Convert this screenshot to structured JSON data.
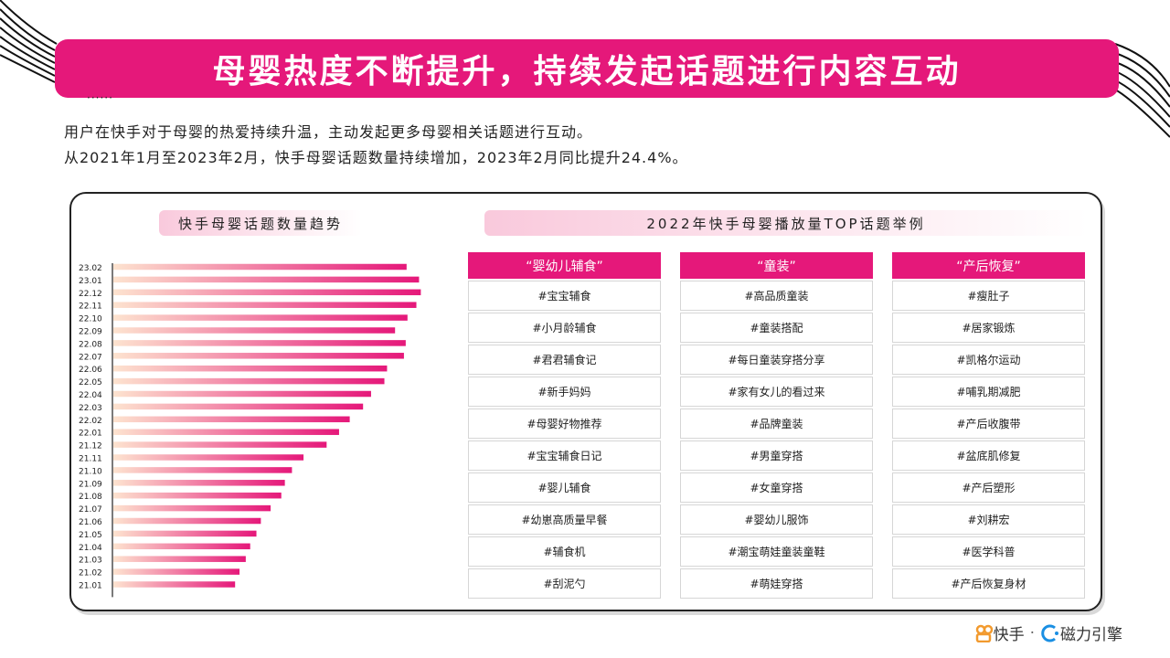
{
  "title": "母婴热度不断提升，持续发起话题进行内容互动",
  "dots": "······",
  "intro": [
    "用户在快手对于母婴的热爱持续升温，主动发起更多母婴相关话题进行互动。",
    "从2021年1月至2023年2月，快手母婴话题数量持续增加，2023年2月同比提升24.4%。"
  ],
  "left_panel_title": "快手母婴话题数量趋势",
  "right_panel_title": "2022年快手母婴播放量TOP话题举例",
  "chart_data": {
    "type": "bar",
    "orientation": "horizontal",
    "title": "快手母婴话题数量趋势",
    "categories": [
      "23.02",
      "23.01",
      "22.12",
      "22.11",
      "22.10",
      "22.09",
      "22.08",
      "22.07",
      "22.06",
      "22.05",
      "22.04",
      "22.03",
      "22.02",
      "22.01",
      "21.12",
      "21.11",
      "21.10",
      "21.09",
      "21.08",
      "21.07",
      "21.06",
      "21.05",
      "21.04",
      "21.03",
      "21.02",
      "21.01"
    ],
    "values": [
      330,
      344,
      346,
      341,
      331,
      317,
      329,
      327,
      308,
      305,
      290,
      281,
      266,
      254,
      240,
      214,
      201,
      193,
      189,
      177,
      166,
      161,
      154,
      149,
      142,
      137
    ],
    "xlim": [
      0,
      360
    ],
    "gradient": [
      "#fde3cf",
      "#e5187a"
    ]
  },
  "topics": [
    {
      "header": "“婴幼儿辅食”",
      "items": [
        "#宝宝辅食",
        "#小月龄辅食",
        "#君君辅食记",
        "#新手妈妈",
        "#母婴好物推荐",
        "#宝宝辅食日记",
        "#婴儿辅食",
        "#幼崽高质量早餐",
        "#辅食机",
        "#刮泥勺"
      ]
    },
    {
      "header": "“童装”",
      "items": [
        "#高品质童装",
        "#童装搭配",
        "#每日童装穿搭分享",
        "#家有女儿的看过来",
        "#品牌童装",
        "#男童穿搭",
        "#女童穿搭",
        "#婴幼儿服饰",
        "#潮宝萌娃童装童鞋",
        "#萌娃穿搭"
      ]
    },
    {
      "header": "“产后恢复”",
      "items": [
        "#瘦肚子",
        "#居家锻炼",
        "#凯格尔运动",
        "#哺乳期减肥",
        "#产后收腹带",
        "#盆底肌修复",
        "#产后塑形",
        "#刘耕宏",
        "#医学科普",
        "#产后恢复身材"
      ]
    }
  ],
  "logo": {
    "kuaishou": "快手",
    "sep": "·",
    "cili": "磁力引擎"
  },
  "colors": {
    "accent": "#e5187a",
    "orange": "#f29a2e",
    "blue": "#1a8fe3"
  }
}
